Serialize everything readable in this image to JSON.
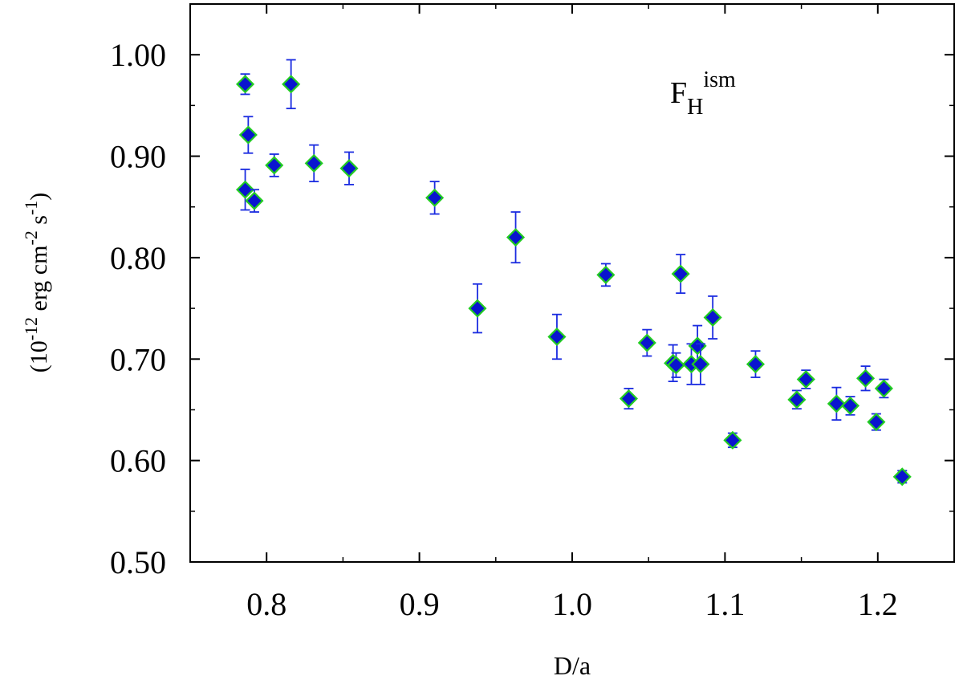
{
  "chart_data": {
    "type": "scatter",
    "title": "",
    "annotation": {
      "main": "F",
      "sub": "H",
      "sup": "ism"
    },
    "xlabel": "D/a",
    "ylabel": {
      "base": "(10",
      "exp1": "-12",
      "mid1": " erg cm",
      "exp2": "-2",
      "mid2": " s",
      "exp3": "-1",
      "end": ")"
    },
    "xlim": [
      0.75,
      1.25
    ],
    "ylim": [
      0.5,
      1.05
    ],
    "xticks": [
      0.8,
      0.9,
      1.0,
      1.1,
      1.2
    ],
    "xtick_labels": [
      "0.8",
      "0.9",
      "1.0",
      "1.1",
      "1.2"
    ],
    "yticks": [
      0.5,
      0.6,
      0.7,
      0.8,
      0.9,
      1.0
    ],
    "ytick_labels": [
      "0.50",
      "0.60",
      "0.70",
      "0.80",
      "0.90",
      "1.00"
    ],
    "grid": false,
    "marker": {
      "shape": "diamond",
      "fill": "#0a14cf",
      "edge": "#22cc22",
      "errorbar": "#1a2be0"
    },
    "points": [
      {
        "x": 0.786,
        "y": 0.971,
        "err": 0.01
      },
      {
        "x": 0.788,
        "y": 0.921,
        "err": 0.018
      },
      {
        "x": 0.786,
        "y": 0.867,
        "err": 0.02
      },
      {
        "x": 0.792,
        "y": 0.856,
        "err": 0.011
      },
      {
        "x": 0.805,
        "y": 0.891,
        "err": 0.011
      },
      {
        "x": 0.816,
        "y": 0.971,
        "err": 0.024
      },
      {
        "x": 0.831,
        "y": 0.893,
        "err": 0.018
      },
      {
        "x": 0.854,
        "y": 0.888,
        "err": 0.016
      },
      {
        "x": 0.91,
        "y": 0.859,
        "err": 0.016
      },
      {
        "x": 0.938,
        "y": 0.75,
        "err": 0.024
      },
      {
        "x": 0.963,
        "y": 0.82,
        "err": 0.025
      },
      {
        "x": 0.99,
        "y": 0.722,
        "err": 0.022
      },
      {
        "x": 1.022,
        "y": 0.783,
        "err": 0.011
      },
      {
        "x": 1.037,
        "y": 0.661,
        "err": 0.01
      },
      {
        "x": 1.049,
        "y": 0.716,
        "err": 0.013
      },
      {
        "x": 1.066,
        "y": 0.696,
        "err": 0.018
      },
      {
        "x": 1.068,
        "y": 0.694,
        "err": 0.012
      },
      {
        "x": 1.071,
        "y": 0.784,
        "err": 0.019
      },
      {
        "x": 1.078,
        "y": 0.695,
        "err": 0.02
      },
      {
        "x": 1.082,
        "y": 0.713,
        "err": 0.02
      },
      {
        "x": 1.084,
        "y": 0.695,
        "err": 0.02
      },
      {
        "x": 1.092,
        "y": 0.741,
        "err": 0.021
      },
      {
        "x": 1.105,
        "y": 0.62,
        "err": 0.007
      },
      {
        "x": 1.12,
        "y": 0.695,
        "err": 0.013
      },
      {
        "x": 1.147,
        "y": 0.66,
        "err": 0.009
      },
      {
        "x": 1.153,
        "y": 0.68,
        "err": 0.009
      },
      {
        "x": 1.173,
        "y": 0.656,
        "err": 0.016
      },
      {
        "x": 1.182,
        "y": 0.654,
        "err": 0.009
      },
      {
        "x": 1.192,
        "y": 0.681,
        "err": 0.012
      },
      {
        "x": 1.199,
        "y": 0.638,
        "err": 0.008
      },
      {
        "x": 1.204,
        "y": 0.671,
        "err": 0.009
      },
      {
        "x": 1.216,
        "y": 0.584,
        "err": 0.006
      }
    ]
  }
}
